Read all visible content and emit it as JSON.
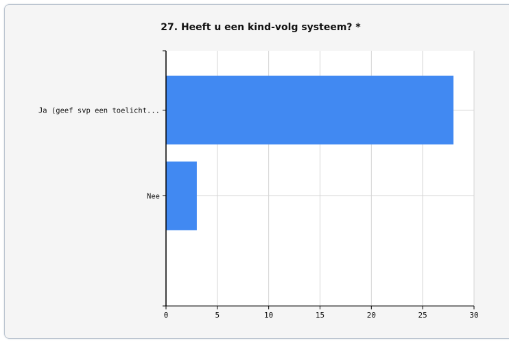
{
  "chart_data": {
    "type": "bar",
    "orientation": "horizontal",
    "title": "27. Heeft u een kind-volg systeem? *",
    "categories": [
      "Ja (geef svp een toelicht...",
      "Nee"
    ],
    "values": [
      28,
      3
    ],
    "xlim": [
      0,
      30
    ],
    "xticks": [
      0,
      5,
      10,
      15,
      20,
      25,
      30
    ],
    "grid": true,
    "legend": "none",
    "bar_color": "#4189f2"
  }
}
